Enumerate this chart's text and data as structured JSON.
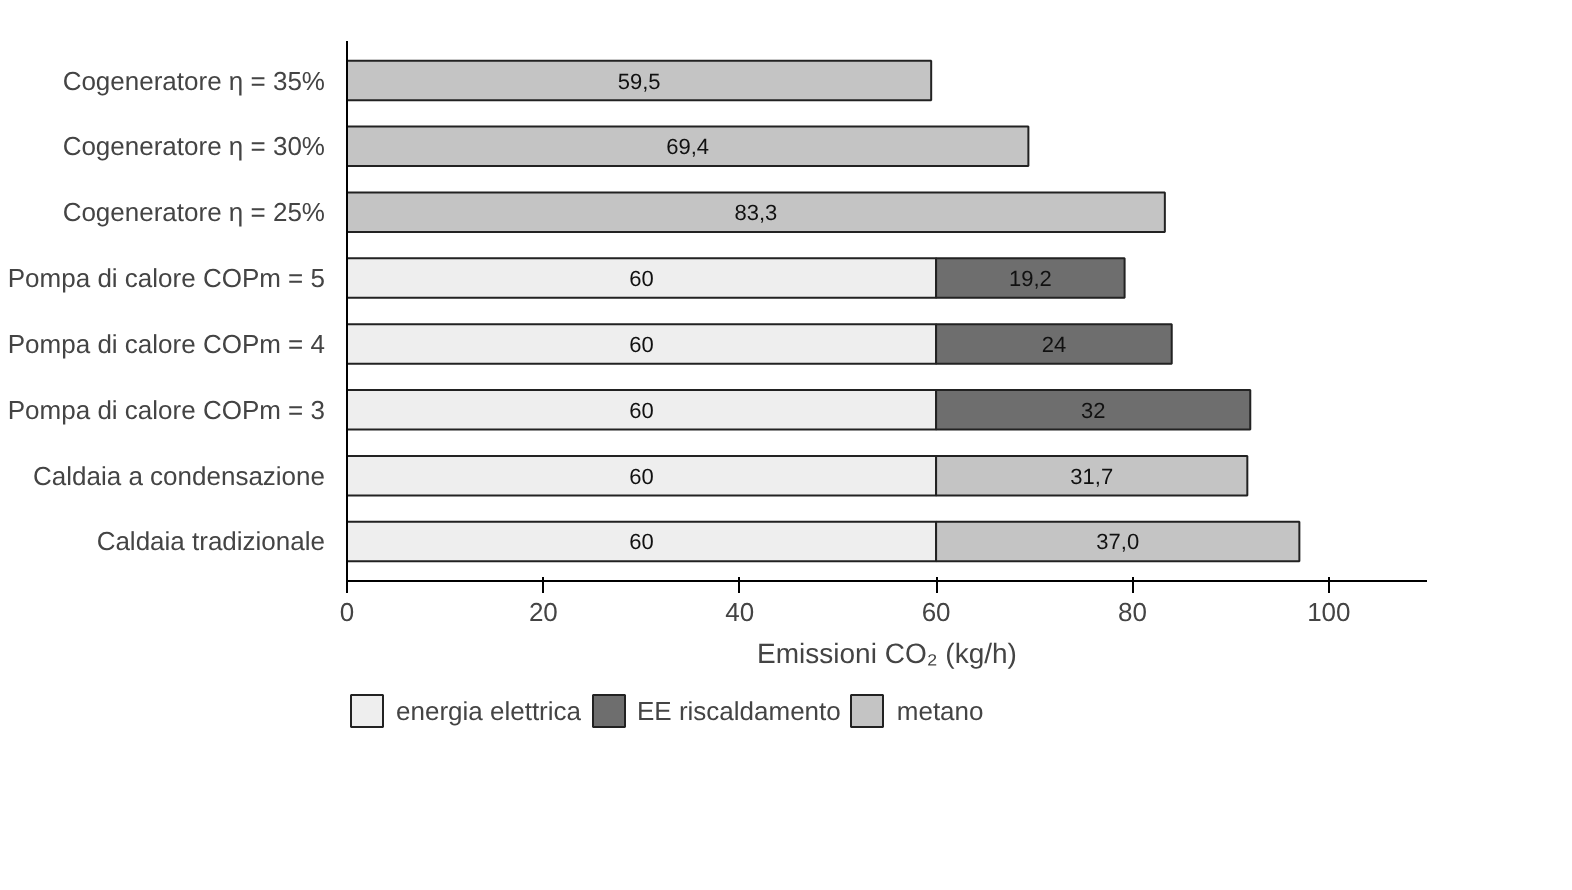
{
  "chart_data": {
    "type": "bar",
    "orientation": "horizontal",
    "stacked": true,
    "categories": [
      "Cogeneratore η = 35%",
      "Cogeneratore η = 30%",
      "Cogeneratore η = 25%",
      "Pompa di calore COPm = 5",
      "Pompa di calore COPm = 4",
      "Pompa di calore COPm = 3",
      "Caldaia a condensazione",
      "Caldaia tradizionale"
    ],
    "series": [
      {
        "name": "energia elettrica",
        "color": "#eeeeee",
        "values": [
          null,
          null,
          null,
          60,
          60,
          60,
          60,
          60
        ],
        "value_labels": [
          null,
          null,
          null,
          "60",
          "60",
          "60",
          "60",
          "60"
        ]
      },
      {
        "name": "EE riscaldamento",
        "color": "#6e6e6e",
        "values": [
          null,
          null,
          null,
          19.2,
          24,
          32,
          null,
          null
        ],
        "value_labels": [
          null,
          null,
          null,
          "19,2",
          "24",
          "32",
          null,
          null
        ]
      },
      {
        "name": "metano",
        "color": "#c4c4c4",
        "values": [
          59.5,
          69.4,
          83.3,
          null,
          null,
          null,
          31.7,
          37.0
        ],
        "value_labels": [
          "59,5",
          "69,4",
          "83,3",
          null,
          null,
          null,
          "31,7",
          "37,0"
        ]
      }
    ],
    "xlim": [
      0,
      110
    ],
    "xticks": [
      0,
      20,
      40,
      60,
      80,
      100
    ],
    "xlabel": "Emissioni CO₂ (kg/h)",
    "grid": false,
    "legend": "bottom"
  }
}
